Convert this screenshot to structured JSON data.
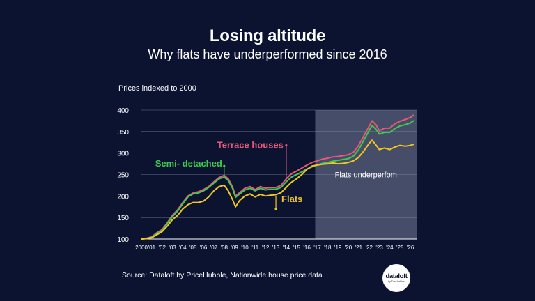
{
  "header": {
    "title": "Losing altitude",
    "subtitle": "Why flats have underperformed since 2016"
  },
  "axis_note": "Prices indexed to 2000",
  "footer": {
    "source": "Source: Dataloft by PriceHubble, Nationwide house price data",
    "logo_main": "dataloft",
    "logo_sub": "by PriceHubble"
  },
  "colors": {
    "background": "#0b1330",
    "terrace": "#e8587a",
    "semi": "#3fc94f",
    "flats": "#f2c81e",
    "shade": "#545d78"
  },
  "chart_data": {
    "type": "line",
    "title": "Losing altitude",
    "subtitle": "Why flats have underperformed since 2016",
    "ylabel": "Prices indexed to 2000",
    "ylim": [
      100,
      400
    ],
    "yticks": [
      100,
      150,
      200,
      250,
      300,
      350,
      400
    ],
    "xlim": [
      2000,
      2026.6
    ],
    "xticks": [
      {
        "value": 2000,
        "label": "2000"
      },
      {
        "value": 2001,
        "label": "'01"
      },
      {
        "value": 2002,
        "label": "'02"
      },
      {
        "value": 2003,
        "label": "'03"
      },
      {
        "value": 2004,
        "label": "'04"
      },
      {
        "value": 2005,
        "label": "'05"
      },
      {
        "value": 2006,
        "label": "'06"
      },
      {
        "value": 2007,
        "label": "'07"
      },
      {
        "value": 2008,
        "label": "'08"
      },
      {
        "value": 2009,
        "label": "'09"
      },
      {
        "value": 2010,
        "label": "'10"
      },
      {
        "value": 2011,
        "label": "'11"
      },
      {
        "value": 2012,
        "label": "'12"
      },
      {
        "value": 2013,
        "label": "'13"
      },
      {
        "value": 2014,
        "label": "'14"
      },
      {
        "value": 2015,
        "label": "'15"
      },
      {
        "value": 2016,
        "label": "'16"
      },
      {
        "value": 2017,
        "label": "'17"
      },
      {
        "value": 2018,
        "label": "'18"
      },
      {
        "value": 2019,
        "label": "'19"
      },
      {
        "value": 2020,
        "label": "'20"
      },
      {
        "value": 2021,
        "label": "'21"
      },
      {
        "value": 2022,
        "label": "'22"
      },
      {
        "value": 2023,
        "label": "'23"
      },
      {
        "value": 2024,
        "label": "'24"
      },
      {
        "value": 2025,
        "label": "'25"
      },
      {
        "value": 2026,
        "label": "'26"
      }
    ],
    "grid": true,
    "shaded_region": {
      "from": 2016.8,
      "to": 2026.6,
      "label": "Flats underperfom"
    },
    "series": [
      {
        "name": "Terrace houses",
        "color": "#e8587a",
        "label_point": {
          "x": 2014,
          "y": 318
        },
        "points": [
          [
            2000,
            100
          ],
          [
            2000.5,
            102
          ],
          [
            2001,
            105
          ],
          [
            2001.5,
            115
          ],
          [
            2002,
            122
          ],
          [
            2002.5,
            138
          ],
          [
            2003,
            155
          ],
          [
            2003.5,
            168
          ],
          [
            2004,
            185
          ],
          [
            2004.5,
            200
          ],
          [
            2005,
            207
          ],
          [
            2005.5,
            210
          ],
          [
            2006,
            215
          ],
          [
            2006.5,
            222
          ],
          [
            2007,
            233
          ],
          [
            2007.5,
            243
          ],
          [
            2008,
            248
          ],
          [
            2008.4,
            240
          ],
          [
            2008.8,
            222
          ],
          [
            2009.1,
            200
          ],
          [
            2009.5,
            208
          ],
          [
            2010,
            218
          ],
          [
            2010.5,
            222
          ],
          [
            2011,
            215
          ],
          [
            2011.5,
            222
          ],
          [
            2012,
            218
          ],
          [
            2012.5,
            220
          ],
          [
            2013,
            220
          ],
          [
            2013.5,
            225
          ],
          [
            2014,
            240
          ],
          [
            2014.5,
            252
          ],
          [
            2015,
            258
          ],
          [
            2015.5,
            265
          ],
          [
            2016,
            272
          ],
          [
            2016.5,
            278
          ],
          [
            2017,
            282
          ],
          [
            2017.5,
            286
          ],
          [
            2018,
            288
          ],
          [
            2018.5,
            291
          ],
          [
            2019,
            292
          ],
          [
            2019.5,
            294
          ],
          [
            2020,
            296
          ],
          [
            2020.5,
            302
          ],
          [
            2021,
            318
          ],
          [
            2021.5,
            340
          ],
          [
            2022,
            362
          ],
          [
            2022.3,
            375
          ],
          [
            2022.7,
            365
          ],
          [
            2023,
            352
          ],
          [
            2023.5,
            358
          ],
          [
            2024,
            358
          ],
          [
            2024.5,
            368
          ],
          [
            2025,
            374
          ],
          [
            2025.5,
            378
          ],
          [
            2026,
            383
          ],
          [
            2026.3,
            388
          ]
        ]
      },
      {
        "name": "Semi- detached",
        "color": "#3fc94f",
        "label_point": {
          "x": 2008,
          "y": 270
        },
        "points": [
          [
            2000,
            100
          ],
          [
            2000.5,
            101
          ],
          [
            2001,
            104
          ],
          [
            2001.5,
            113
          ],
          [
            2002,
            120
          ],
          [
            2002.5,
            136
          ],
          [
            2003,
            152
          ],
          [
            2003.5,
            165
          ],
          [
            2004,
            182
          ],
          [
            2004.5,
            198
          ],
          [
            2005,
            205
          ],
          [
            2005.5,
            207
          ],
          [
            2006,
            212
          ],
          [
            2006.5,
            220
          ],
          [
            2007,
            230
          ],
          [
            2007.5,
            240
          ],
          [
            2008,
            244
          ],
          [
            2008.4,
            236
          ],
          [
            2008.8,
            218
          ],
          [
            2009.1,
            197
          ],
          [
            2009.5,
            205
          ],
          [
            2010,
            214
          ],
          [
            2010.5,
            218
          ],
          [
            2011,
            212
          ],
          [
            2011.5,
            218
          ],
          [
            2012,
            214
          ],
          [
            2012.5,
            216
          ],
          [
            2013,
            216
          ],
          [
            2013.5,
            220
          ],
          [
            2014,
            233
          ],
          [
            2014.5,
            244
          ],
          [
            2015,
            250
          ],
          [
            2015.5,
            256
          ],
          [
            2016,
            263
          ],
          [
            2016.5,
            268
          ],
          [
            2017,
            272
          ],
          [
            2017.5,
            276
          ],
          [
            2018,
            278
          ],
          [
            2018.5,
            281
          ],
          [
            2019,
            283
          ],
          [
            2019.5,
            285
          ],
          [
            2020,
            287
          ],
          [
            2020.5,
            293
          ],
          [
            2021,
            308
          ],
          [
            2021.5,
            330
          ],
          [
            2022,
            352
          ],
          [
            2022.3,
            364
          ],
          [
            2022.7,
            355
          ],
          [
            2023,
            344
          ],
          [
            2023.5,
            348
          ],
          [
            2024,
            348
          ],
          [
            2024.5,
            357
          ],
          [
            2025,
            363
          ],
          [
            2025.5,
            366
          ],
          [
            2026,
            370
          ],
          [
            2026.3,
            375
          ]
        ]
      },
      {
        "name": "Flats",
        "color": "#f2c81e",
        "label_point": {
          "x": 2013,
          "y": 170
        },
        "points": [
          [
            2000,
            100
          ],
          [
            2000.5,
            101
          ],
          [
            2001,
            103
          ],
          [
            2001.5,
            110
          ],
          [
            2002,
            117
          ],
          [
            2002.5,
            130
          ],
          [
            2003,
            145
          ],
          [
            2003.5,
            155
          ],
          [
            2004,
            170
          ],
          [
            2004.5,
            180
          ],
          [
            2005,
            185
          ],
          [
            2005.5,
            185
          ],
          [
            2006,
            188
          ],
          [
            2006.5,
            198
          ],
          [
            2007,
            212
          ],
          [
            2007.5,
            222
          ],
          [
            2008,
            225
          ],
          [
            2008.4,
            212
          ],
          [
            2008.8,
            192
          ],
          [
            2009.1,
            175
          ],
          [
            2009.5,
            190
          ],
          [
            2010,
            200
          ],
          [
            2010.5,
            205
          ],
          [
            2011,
            198
          ],
          [
            2011.5,
            204
          ],
          [
            2012,
            200
          ],
          [
            2012.5,
            202
          ],
          [
            2013,
            203
          ],
          [
            2013.5,
            208
          ],
          [
            2014,
            220
          ],
          [
            2014.5,
            232
          ],
          [
            2015,
            240
          ],
          [
            2015.5,
            250
          ],
          [
            2016,
            262
          ],
          [
            2016.5,
            270
          ],
          [
            2017,
            272
          ],
          [
            2017.5,
            274
          ],
          [
            2018,
            275
          ],
          [
            2018.5,
            277
          ],
          [
            2019,
            275
          ],
          [
            2019.5,
            276
          ],
          [
            2020,
            278
          ],
          [
            2020.5,
            282
          ],
          [
            2021,
            290
          ],
          [
            2021.5,
            305
          ],
          [
            2022,
            322
          ],
          [
            2022.3,
            330
          ],
          [
            2022.7,
            318
          ],
          [
            2023,
            308
          ],
          [
            2023.5,
            312
          ],
          [
            2024,
            308
          ],
          [
            2024.5,
            314
          ],
          [
            2025,
            318
          ],
          [
            2025.5,
            316
          ],
          [
            2026,
            318
          ],
          [
            2026.3,
            320
          ]
        ]
      }
    ]
  }
}
